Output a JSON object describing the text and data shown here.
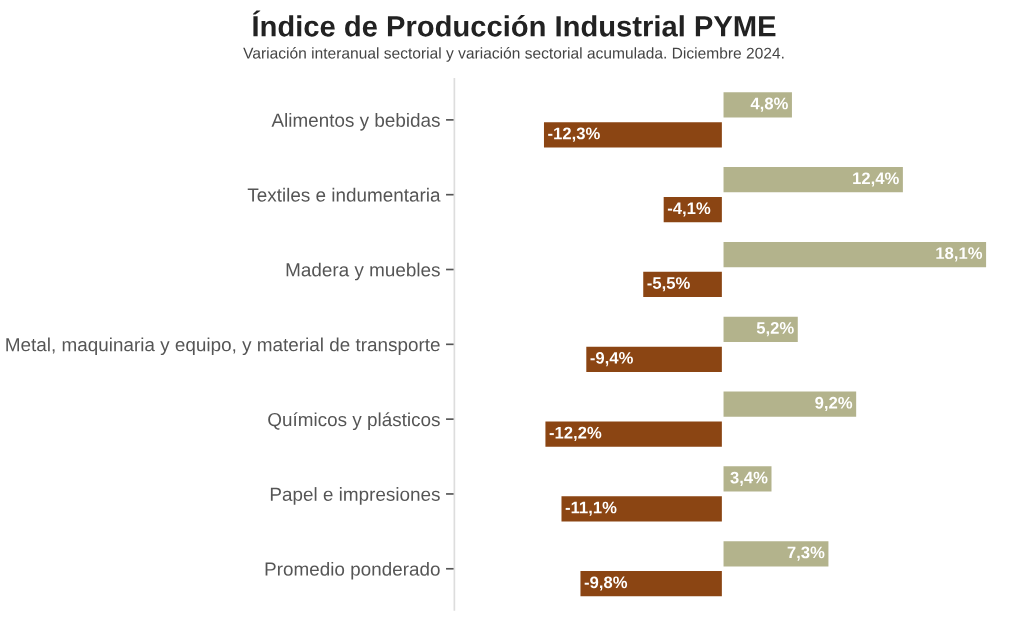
{
  "chart_data": {
    "type": "bar",
    "orientation": "horizontal",
    "title": "Índice de Producción Industrial PYME",
    "subtitle": "Variación interanual sectorial y variación sectorial acumulada. Diciembre 2024.",
    "categories": [
      "Alimentos y bebidas",
      "Textiles e indumentaria",
      "Madera y muebles",
      "Metal, maquinaria y equipo, y material de transporte",
      "Químicos y plásticos",
      "Papel e impresiones",
      "Promedio ponderado"
    ],
    "series": [
      {
        "color": "#b3b38c",
        "values": [
          4.8,
          12.4,
          18.1,
          5.2,
          9.2,
          3.4,
          7.3
        ],
        "value_labels": [
          "4,8%",
          "12,4%",
          "18,1%",
          "5,2%",
          "9,2%",
          "3,4%",
          "7,3%"
        ]
      },
      {
        "color": "#8b4513",
        "values": [
          -12.3,
          -4.1,
          -5.5,
          -9.4,
          -12.2,
          -11.1,
          -9.8
        ],
        "value_labels": [
          "-12,3%",
          "-4,1%",
          "-5,5%",
          "-9,4%",
          "-12,2%",
          "-11,1%",
          "-9,8%"
        ]
      }
    ],
    "tick_labels": "y",
    "grid": false
  }
}
